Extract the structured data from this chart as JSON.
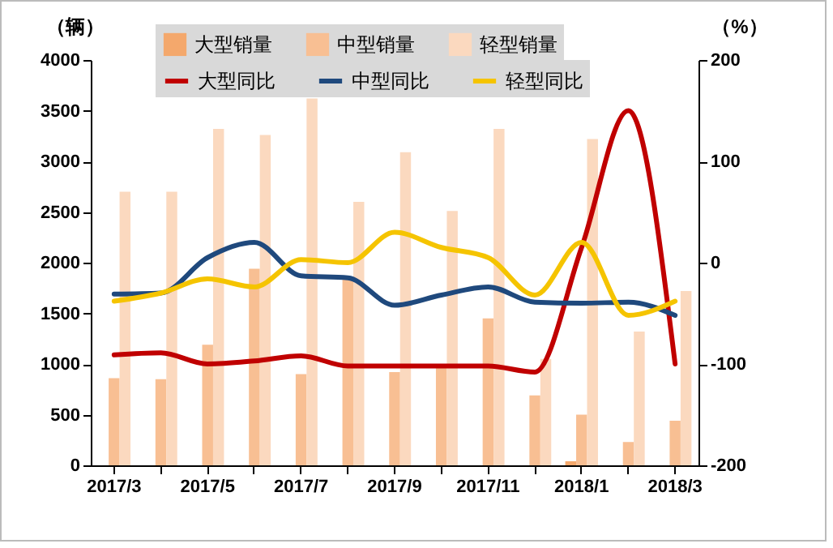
{
  "chart_data": {
    "type": "bar",
    "categories": [
      "2017/3",
      null,
      "2017/5",
      null,
      "2017/7",
      null,
      "2017/9",
      null,
      "2017/11",
      null,
      "2018/1",
      null,
      "2018/3"
    ],
    "ylabel": "（辆）",
    "y2label": "（%）",
    "ylim": [
      0,
      4000
    ],
    "yticks": [
      0,
      500,
      1000,
      1500,
      2000,
      2500,
      3000,
      3500,
      4000
    ],
    "y2lim": [
      -200,
      200
    ],
    "y2ticks": [
      -200,
      -100,
      0,
      100,
      200
    ],
    "legend": "top",
    "grid": false,
    "series": [
      {
        "name": "大型销量",
        "color": "#f4a86c",
        "values": [
          null,
          null,
          null,
          null,
          null,
          null,
          null,
          null,
          null,
          null,
          40,
          null,
          null
        ]
      },
      {
        "name": "中型销量",
        "color": "#f8bf93",
        "values": [
          860,
          850,
          1190,
          1940,
          900,
          1850,
          920,
          1000,
          1450,
          690,
          500,
          230,
          440
        ]
      },
      {
        "name": "轻型销量",
        "color": "#fbd9bf",
        "values": [
          2700,
          2700,
          3320,
          3260,
          3620,
          2600,
          3090,
          2510,
          3320,
          1050,
          3220,
          1320,
          1720
        ]
      },
      {
        "name": "大型同比",
        "type": "line",
        "axis": "y2",
        "color": "#c00000",
        "values": [
          -91,
          -89,
          -100,
          -97,
          -92,
          -102,
          -102,
          -102,
          -102,
          -108,
          15,
          150,
          -100
        ]
      },
      {
        "name": "中型同比",
        "type": "line",
        "axis": "y2",
        "color": "#1f497d",
        "values": [
          -31,
          -30,
          5,
          20,
          -13,
          -15,
          -42,
          -32,
          -24,
          -39,
          -40,
          -39,
          -52
        ]
      },
      {
        "name": "轻型同比",
        "type": "line",
        "axis": "y2",
        "color": "#f5c400",
        "values": [
          -38,
          -30,
          -16,
          -24,
          3,
          0,
          30,
          15,
          5,
          -32,
          20,
          -52,
          -38
        ]
      }
    ]
  }
}
